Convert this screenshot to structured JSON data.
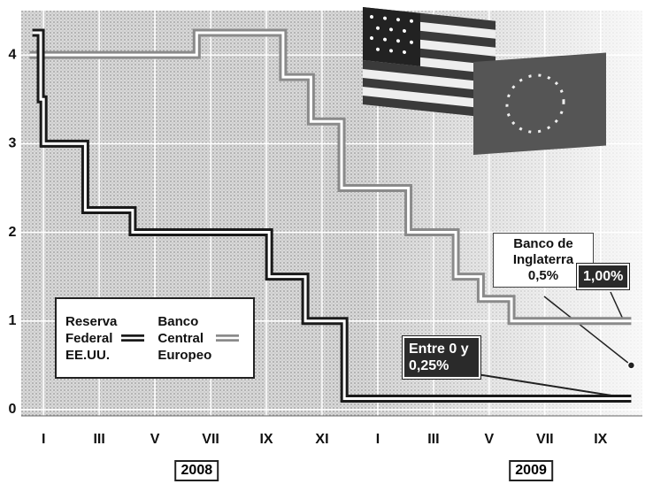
{
  "chart_data": {
    "type": "line",
    "xlim": [
      -0.8,
      21.5
    ],
    "xticks": [
      {
        "value": 0,
        "label": "I"
      },
      {
        "value": 2,
        "label": "III"
      },
      {
        "value": 4,
        "label": "V"
      },
      {
        "value": 6,
        "label": "VII"
      },
      {
        "value": 8,
        "label": "IX"
      },
      {
        "value": 10,
        "label": "XI"
      },
      {
        "value": 12,
        "label": "I"
      },
      {
        "value": 14,
        "label": "III"
      },
      {
        "value": 16,
        "label": "V"
      },
      {
        "value": 18,
        "label": "VII"
      },
      {
        "value": 20,
        "label": "IX"
      }
    ],
    "x_groups": [
      "2008",
      "2009"
    ],
    "ylim": [
      -0.07,
      4.5
    ],
    "yticks": [
      0,
      1,
      2,
      3,
      4
    ],
    "grid": true,
    "series": [
      {
        "name": "Reserva Federal EE.UU.",
        "color": "#1a1a1a",
        "x": [
          -0.4,
          -0.1,
          -0.1,
          0.0,
          0.0,
          1.5,
          1.5,
          3.2,
          3.2,
          8.1,
          8.1,
          9.4,
          9.4,
          10.8,
          10.8,
          21.1
        ],
        "values": [
          4.25,
          4.25,
          3.5,
          3.5,
          3,
          3,
          2.25,
          2.25,
          2,
          2,
          1.5,
          1.5,
          1,
          1,
          0.125,
          0.125
        ]
      },
      {
        "name": "Banco Central Europeo",
        "color": "#8a8a8a",
        "x": [
          -0.5,
          5.5,
          5.5,
          8.6,
          8.6,
          9.6,
          9.6,
          10.7,
          10.7,
          13.1,
          13.1,
          14.8,
          14.8,
          15.7,
          15.7,
          16.8,
          16.8,
          21.1
        ],
        "values": [
          4,
          4,
          4.25,
          4.25,
          3.75,
          3.75,
          3.25,
          3.25,
          2.5,
          2.5,
          2,
          2,
          1.5,
          1.5,
          1.25,
          1.25,
          1,
          1
        ]
      }
    ],
    "point": {
      "name": "Banco de Inglaterra",
      "x": 21.1,
      "value": 0.5,
      "value_label": "0,5%",
      "color": "#222"
    },
    "annotations": [
      "1,00%",
      "Entre 0 y 0,25%"
    ]
  }
}
